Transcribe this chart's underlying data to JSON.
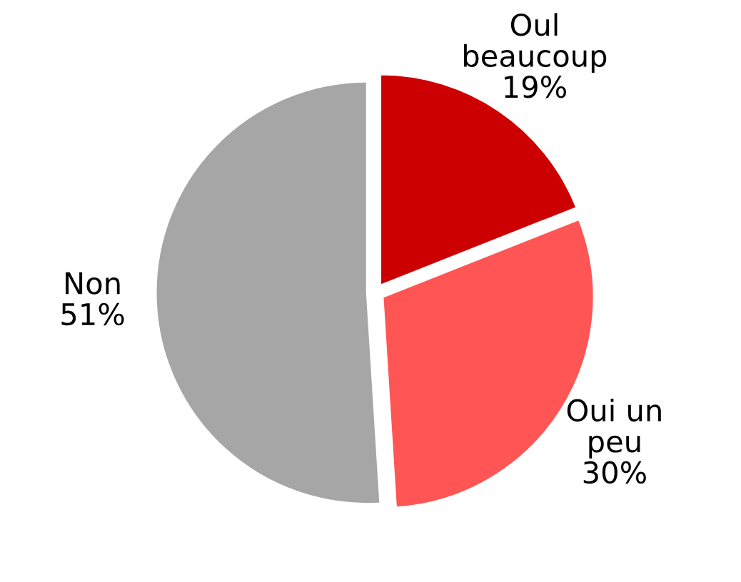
{
  "chart_data": {
    "type": "pie",
    "categories": [
      "Oul\nbeaucoup",
      "Oui un\npeu",
      "Non"
    ],
    "values": [
      19,
      30,
      51
    ],
    "colors": [
      "#cc0000",
      "#ff5555",
      "#a6a6a6"
    ],
    "value_labels": [
      "19%",
      "30%",
      "51%"
    ],
    "legend": false
  }
}
